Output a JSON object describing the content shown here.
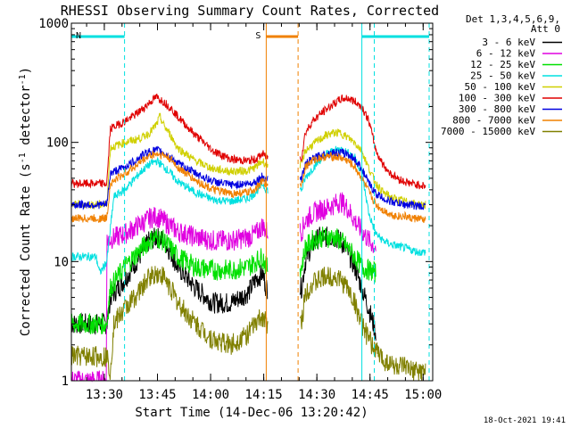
{
  "chart_data": {
    "type": "line",
    "title": "RHESSI Observing Summary Count Rates, Corrected",
    "xlabel": "Start Time (14-Dec-06 13:20:42)",
    "ylabel": "Corrected Count Rate (s",
    "ylabel_sup1": "-1",
    "ylabel_mid": " detector",
    "ylabel_sup2": "-1",
    "ylabel_end": ")",
    "yscale": "log",
    "ylim": [
      1,
      1000
    ],
    "xlim_minutes": [
      0,
      102
    ],
    "x_ticks": [
      {
        "label": "13:30",
        "minutes": 9.3
      },
      {
        "label": "13:45",
        "minutes": 24.3
      },
      {
        "label": "14:00",
        "minutes": 39.3
      },
      {
        "label": "14:15",
        "minutes": 54.3
      },
      {
        "label": "14:30",
        "minutes": 69.3
      },
      {
        "label": "14:45",
        "minutes": 84.3
      },
      {
        "label": "15:00",
        "minutes": 99.3
      }
    ],
    "y_ticks": [
      {
        "label": "1",
        "value": 1
      },
      {
        "label": "10",
        "value": 10
      },
      {
        "label": "100",
        "value": 100
      },
      {
        "label": "1000",
        "value": 1000
      }
    ],
    "legend_header": [
      "Det 1,3,4,5,6,9,",
      "Att 0"
    ],
    "legend_position": "right",
    "gaps_minutes": [
      [
        55.5,
        64.5
      ]
    ],
    "series": [
      {
        "name": "3 - 6 keV",
        "color": "#000000",
        "x": [
          0,
          10,
          11,
          15,
          20,
          22,
          24,
          26,
          28,
          30,
          35,
          40,
          45,
          50,
          52,
          54,
          55,
          65,
          66,
          68,
          70,
          72,
          74,
          76,
          78,
          80,
          82,
          84,
          86
        ],
        "y": [
          3,
          3,
          5,
          7,
          12,
          15,
          16,
          15,
          12,
          9,
          6,
          4.5,
          4.5,
          5.5,
          7,
          8,
          6,
          6,
          10,
          14,
          16,
          16,
          16,
          15,
          12,
          9,
          6,
          4,
          2.5
        ]
      },
      {
        "name": "6 - 12 keV",
        "color": "#e000e0",
        "x": [
          0,
          9.9,
          10,
          15,
          20,
          22,
          24,
          26,
          28,
          30,
          35,
          40,
          45,
          50,
          52,
          54,
          55,
          65,
          66,
          68,
          70,
          72,
          74,
          76,
          78,
          80,
          82,
          84,
          86
        ],
        "y": [
          1,
          1,
          15,
          17,
          21,
          23,
          24,
          22,
          20,
          18,
          16,
          15,
          15,
          16,
          17,
          20,
          18,
          18,
          22,
          25,
          27,
          28,
          30,
          32,
          28,
          22,
          18,
          15,
          13
        ]
      },
      {
        "name": "12 - 25 keV",
        "color": "#00e000",
        "x": [
          0,
          10,
          11,
          15,
          20,
          22,
          24,
          26,
          28,
          30,
          35,
          40,
          45,
          50,
          52,
          54,
          55,
          65,
          66,
          68,
          70,
          72,
          74,
          76,
          78,
          80,
          82,
          84,
          86
        ],
        "y": [
          3,
          3,
          6,
          9,
          13,
          15,
          16,
          15,
          13,
          11,
          9,
          8.5,
          8.5,
          9,
          10,
          11,
          9,
          9,
          13,
          15,
          16,
          16,
          16,
          15,
          13,
          11,
          9,
          8.5,
          8
        ]
      },
      {
        "name": "25 - 50 keV",
        "color": "#00e0e0",
        "x": [
          0,
          7,
          8,
          10,
          12,
          15,
          18,
          20,
          22,
          24,
          26,
          28,
          30,
          35,
          40,
          45,
          50,
          52,
          54,
          55,
          65,
          66,
          68,
          70,
          72,
          74,
          76,
          78,
          80,
          82,
          84,
          86,
          88,
          90,
          92,
          94,
          96,
          98,
          100
        ],
        "y": [
          11,
          11,
          8,
          10,
          35,
          40,
          50,
          58,
          65,
          70,
          63,
          55,
          47,
          38,
          33,
          32,
          34,
          38,
          45,
          40,
          40,
          50,
          60,
          70,
          80,
          85,
          88,
          82,
          75,
          55,
          25,
          17,
          15,
          14,
          13.5,
          13,
          12.5,
          12,
          12
        ]
      },
      {
        "name": "50 - 100 keV",
        "color": "#d0d000",
        "x": [
          0,
          10,
          11,
          15,
          18,
          20,
          22,
          24,
          25,
          26,
          28,
          30,
          35,
          40,
          45,
          50,
          52,
          54,
          55,
          65,
          66,
          68,
          70,
          72,
          74,
          76,
          78,
          80,
          82,
          84,
          86,
          88,
          90,
          92,
          94,
          96,
          98,
          100
        ],
        "y": [
          30,
          30,
          90,
          100,
          105,
          110,
          120,
          140,
          165,
          140,
          115,
          90,
          70,
          60,
          57,
          58,
          62,
          70,
          65,
          65,
          85,
          95,
          105,
          115,
          120,
          120,
          110,
          100,
          85,
          60,
          45,
          38,
          35,
          33,
          32,
          31,
          30,
          30
        ]
      },
      {
        "name": "100 - 300 keV",
        "color": "#e00000",
        "x": [
          0,
          10,
          11,
          15,
          18,
          20,
          22,
          24,
          26,
          28,
          30,
          35,
          40,
          45,
          50,
          52,
          54,
          55,
          65,
          66,
          68,
          70,
          72,
          74,
          76,
          78,
          80,
          82,
          84,
          86,
          88,
          90,
          92,
          94,
          96,
          98,
          100
        ],
        "y": [
          45,
          45,
          130,
          150,
          170,
          190,
          215,
          240,
          220,
          195,
          165,
          115,
          85,
          72,
          70,
          72,
          80,
          75,
          75,
          120,
          150,
          170,
          190,
          210,
          230,
          235,
          220,
          200,
          150,
          85,
          65,
          55,
          50,
          47,
          45,
          44,
          43
        ]
      },
      {
        "name": "300 - 800 keV",
        "color": "#0000e0",
        "x": [
          0,
          10,
          11,
          15,
          18,
          20,
          22,
          24,
          26,
          28,
          30,
          35,
          40,
          45,
          50,
          52,
          54,
          55,
          65,
          66,
          68,
          70,
          72,
          74,
          76,
          78,
          80,
          82,
          84,
          86,
          88,
          90,
          92,
          94,
          96,
          98,
          100
        ],
        "y": [
          30,
          30,
          55,
          62,
          70,
          78,
          84,
          86,
          82,
          75,
          67,
          55,
          47,
          44,
          45,
          47,
          52,
          50,
          50,
          65,
          72,
          77,
          80,
          82,
          82,
          80,
          72,
          60,
          45,
          37,
          34,
          32,
          31,
          30,
          30,
          29,
          29
        ]
      },
      {
        "name": "800 - 7000 keV",
        "color": "#f08000",
        "x": [
          0,
          10,
          11,
          15,
          18,
          20,
          22,
          24,
          26,
          28,
          30,
          35,
          40,
          45,
          50,
          52,
          54,
          55,
          65,
          66,
          68,
          70,
          72,
          74,
          76,
          78,
          80,
          82,
          84,
          86,
          88,
          90,
          92,
          94,
          96,
          98,
          100
        ],
        "y": [
          23,
          23,
          45,
          55,
          63,
          70,
          77,
          80,
          78,
          72,
          62,
          48,
          40,
          37,
          38,
          41,
          47,
          45,
          45,
          62,
          70,
          74,
          76,
          76,
          74,
          70,
          62,
          50,
          38,
          30,
          27,
          25,
          24,
          24,
          23,
          23,
          22
        ]
      },
      {
        "name": "7000 - 15000 keV",
        "color": "#808000",
        "x": [
          0,
          10,
          11,
          12,
          15,
          20,
          22,
          24,
          26,
          28,
          30,
          35,
          40,
          45,
          50,
          52,
          54,
          55,
          65,
          66,
          68,
          70,
          72,
          74,
          76,
          78,
          80,
          82,
          84,
          86,
          88,
          90,
          92,
          94,
          96,
          98,
          100
        ],
        "y": [
          1.6,
          1.6,
          1.2,
          3,
          4,
          6,
          7.5,
          8,
          7.5,
          6,
          4.5,
          3,
          2.2,
          2,
          2.5,
          3,
          3.5,
          3,
          3,
          5.5,
          6.5,
          7,
          7.5,
          7.5,
          7,
          6,
          4.5,
          3,
          2.2,
          1.8,
          1.5,
          1.4,
          1.3,
          1.3,
          1.2,
          1.2,
          1.2
        ]
      }
    ],
    "annotations": [
      {
        "label": "N",
        "color": "#00e0e0",
        "start_minutes": 0,
        "end_minutes": 15
      },
      {
        "label": "",
        "color": "#00e0e0",
        "start_minutes": 82,
        "end_minutes": 101
      },
      {
        "label": "S",
        "color": "#f08000",
        "start_minutes": 55,
        "end_minutes": 64
      }
    ],
    "vlines": [
      {
        "minutes": 15,
        "color": "#00e0e0",
        "style": "dashed"
      },
      {
        "minutes": 82,
        "color": "#00e0e0",
        "style": "solid"
      },
      {
        "minutes": 85.5,
        "color": "#00e0e0",
        "style": "dashed"
      },
      {
        "minutes": 101,
        "color": "#00e0e0",
        "style": "dashed"
      },
      {
        "minutes": 55,
        "color": "#f08000",
        "style": "solid"
      },
      {
        "minutes": 64,
        "color": "#f08000",
        "style": "dashed"
      }
    ],
    "timestamp": "18-Oct-2021 19:41"
  }
}
